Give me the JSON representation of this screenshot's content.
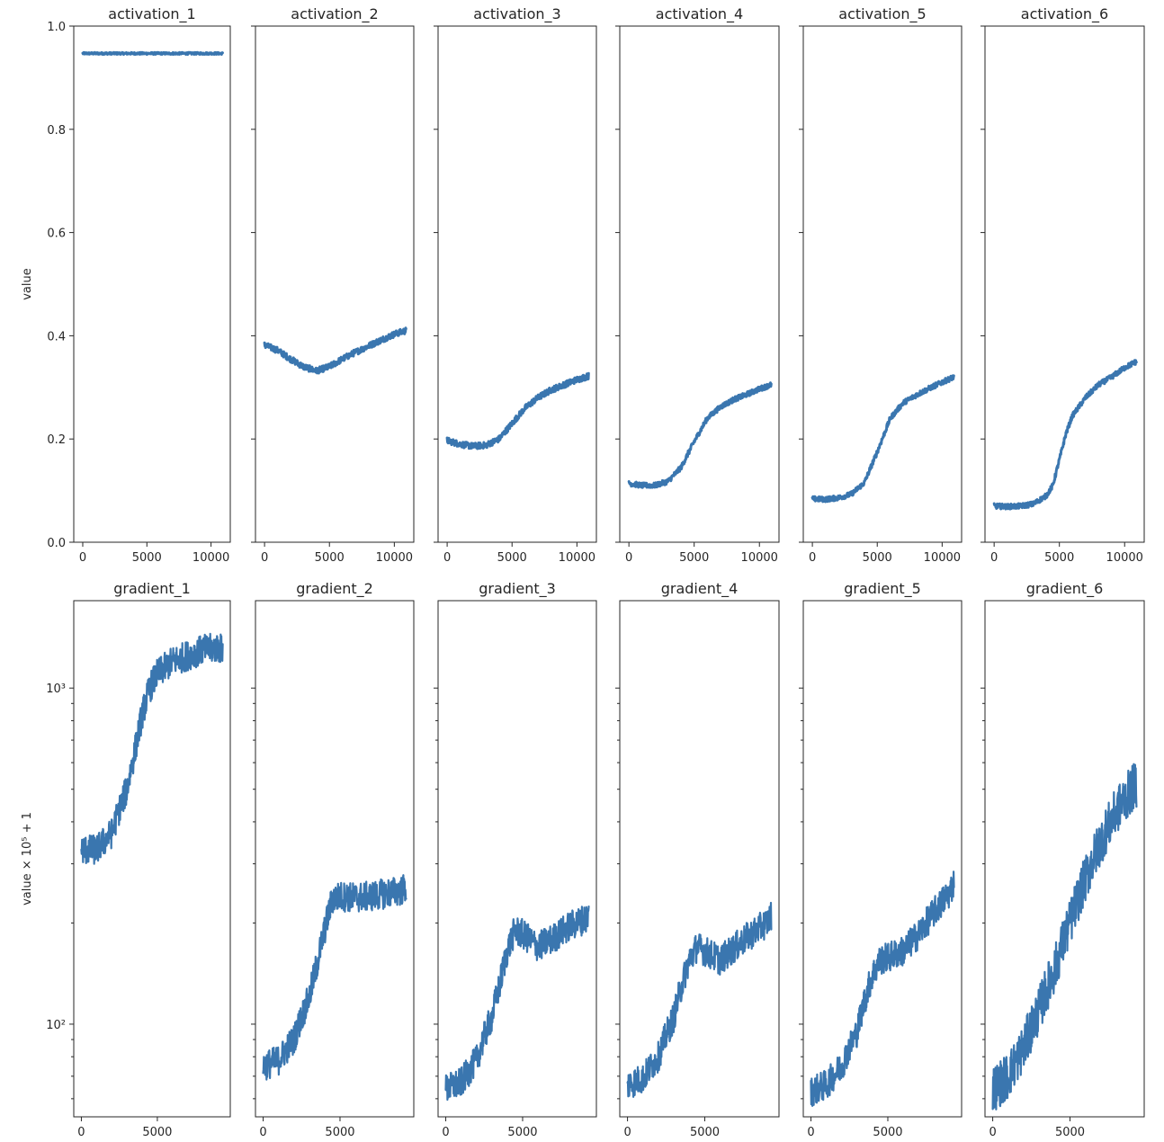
{
  "chart_data": [
    {
      "type": "line",
      "title": "activation_1",
      "ylabel": "value",
      "yscale": "linear",
      "xlim": [
        -700,
        11500
      ],
      "ylim": [
        0,
        1.0
      ],
      "xticks": [
        0,
        5000,
        10000
      ],
      "yticks": [
        0,
        0.2,
        0.4,
        0.6,
        0.8,
        1.0
      ],
      "xtick_labels": [
        "0",
        "5000",
        "10000"
      ],
      "ytick_labels": [
        "0.0",
        "0.2",
        "0.4",
        "0.6",
        "0.8",
        "1.0"
      ],
      "color": "#3a76af",
      "noise": 0.002,
      "x": [
        0,
        2000,
        4000,
        6000,
        8000,
        10000,
        10900
      ],
      "y": [
        0.947,
        0.947,
        0.947,
        0.947,
        0.947,
        0.947,
        0.947
      ]
    },
    {
      "type": "line",
      "title": "activation_2",
      "ylabel": "",
      "yscale": "linear",
      "xlim": [
        -700,
        11500
      ],
      "ylim": [
        0,
        1.0
      ],
      "xticks": [
        0,
        5000,
        10000
      ],
      "yticks": [
        0,
        0.2,
        0.4,
        0.6,
        0.8,
        1.0
      ],
      "xtick_labels": [
        "0",
        "5000",
        "10000"
      ],
      "ytick_labels": [],
      "color": "#3a76af",
      "noise": 0.006,
      "x": [
        0,
        1000,
        2000,
        3000,
        4000,
        5000,
        6000,
        7000,
        8000,
        9000,
        10000,
        10900
      ],
      "y": [
        0.382,
        0.372,
        0.355,
        0.34,
        0.332,
        0.34,
        0.355,
        0.368,
        0.38,
        0.392,
        0.403,
        0.41
      ]
    },
    {
      "type": "line",
      "title": "activation_3",
      "ylabel": "",
      "yscale": "linear",
      "xlim": [
        -700,
        11500
      ],
      "ylim": [
        0,
        1.0
      ],
      "xticks": [
        0,
        5000,
        10000
      ],
      "yticks": [
        0,
        0.2,
        0.4,
        0.6,
        0.8,
        1.0
      ],
      "xtick_labels": [
        "0",
        "5000",
        "10000"
      ],
      "ytick_labels": [],
      "color": "#3a76af",
      "noise": 0.006,
      "x": [
        0,
        1000,
        2000,
        3000,
        4000,
        5000,
        6000,
        7000,
        8000,
        9000,
        10000,
        10900
      ],
      "y": [
        0.197,
        0.19,
        0.186,
        0.188,
        0.2,
        0.23,
        0.26,
        0.28,
        0.295,
        0.305,
        0.315,
        0.322
      ]
    },
    {
      "type": "line",
      "title": "activation_4",
      "ylabel": "",
      "yscale": "linear",
      "xlim": [
        -700,
        11500
      ],
      "ylim": [
        0,
        1.0
      ],
      "xticks": [
        0,
        5000,
        10000
      ],
      "yticks": [
        0,
        0.2,
        0.4,
        0.6,
        0.8,
        1.0
      ],
      "xtick_labels": [
        "0",
        "5000",
        "10000"
      ],
      "ytick_labels": [],
      "color": "#3a76af",
      "noise": 0.005,
      "x": [
        0,
        1000,
        2000,
        3000,
        4000,
        5000,
        6000,
        7000,
        8000,
        9000,
        10000,
        10900
      ],
      "y": [
        0.114,
        0.11,
        0.11,
        0.118,
        0.145,
        0.195,
        0.24,
        0.262,
        0.276,
        0.286,
        0.297,
        0.305
      ]
    },
    {
      "type": "line",
      "title": "activation_5",
      "ylabel": "",
      "yscale": "linear",
      "xlim": [
        -700,
        11500
      ],
      "ylim": [
        0,
        1.0
      ],
      "xticks": [
        0,
        5000,
        10000
      ],
      "yticks": [
        0,
        0.2,
        0.4,
        0.6,
        0.8,
        1.0
      ],
      "xtick_labels": [
        "0",
        "5000",
        "10000"
      ],
      "ytick_labels": [],
      "color": "#3a76af",
      "noise": 0.005,
      "x": [
        0,
        1000,
        2000,
        3000,
        4000,
        5000,
        6000,
        7000,
        8000,
        9000,
        10000,
        10900
      ],
      "y": [
        0.084,
        0.083,
        0.086,
        0.093,
        0.115,
        0.175,
        0.24,
        0.27,
        0.285,
        0.298,
        0.31,
        0.32
      ]
    },
    {
      "type": "line",
      "title": "activation_6",
      "ylabel": "",
      "yscale": "linear",
      "xlim": [
        -700,
        11500
      ],
      "ylim": [
        0,
        1.0
      ],
      "xticks": [
        0,
        5000,
        10000
      ],
      "yticks": [
        0,
        0.2,
        0.4,
        0.6,
        0.8,
        1.0
      ],
      "xtick_labels": [
        "0",
        "5000",
        "10000"
      ],
      "ytick_labels": [],
      "color": "#3a76af",
      "noise": 0.005,
      "x": [
        0,
        1000,
        2000,
        3000,
        4000,
        4500,
        5000,
        5500,
        6000,
        7000,
        8000,
        9000,
        10000,
        10900
      ],
      "y": [
        0.07,
        0.069,
        0.07,
        0.074,
        0.09,
        0.11,
        0.16,
        0.21,
        0.245,
        0.28,
        0.305,
        0.32,
        0.338,
        0.35
      ]
    },
    {
      "type": "line",
      "title": "gradient_1",
      "ylabel": "value × 10⁵ + 1",
      "yscale": "log",
      "xlim": [
        -500,
        9800
      ],
      "ylim": [
        53,
        1820
      ],
      "xticks": [
        0,
        5000
      ],
      "yticks": [
        100,
        1000
      ],
      "xtick_labels": [
        "0",
        "5000"
      ],
      "ytick_labels": [
        "10²",
        "10³"
      ],
      "minor_yticks": [
        60,
        70,
        80,
        90,
        200,
        300,
        400,
        500,
        600,
        700,
        800,
        900
      ],
      "color": "#3a76af",
      "noise": 0.045,
      "x": [
        0,
        1000,
        2000,
        3000,
        3500,
        4000,
        4500,
        5000,
        6000,
        7000,
        8000,
        9000,
        9300
      ],
      "y": [
        330,
        330,
        370,
        500,
        640,
        830,
        1000,
        1100,
        1200,
        1250,
        1300,
        1320,
        1300
      ]
    },
    {
      "type": "line",
      "title": "gradient_2",
      "ylabel": "",
      "yscale": "log",
      "xlim": [
        -500,
        9800
      ],
      "ylim": [
        53,
        1820
      ],
      "xticks": [
        0,
        5000
      ],
      "yticks": [
        100,
        1000
      ],
      "xtick_labels": [
        "0",
        "5000"
      ],
      "ytick_labels": [],
      "minor_yticks": [
        60,
        70,
        80,
        90,
        200,
        300,
        400,
        500,
        600,
        700,
        800,
        900
      ],
      "color": "#3a76af",
      "noise": 0.045,
      "x": [
        0,
        1000,
        2000,
        3000,
        3500,
        4000,
        4500,
        5000,
        6000,
        7000,
        8000,
        9000,
        9300
      ],
      "y": [
        75,
        78,
        90,
        120,
        150,
        190,
        235,
        240,
        238,
        240,
        245,
        250,
        255
      ]
    },
    {
      "type": "line",
      "title": "gradient_3",
      "ylabel": "",
      "yscale": "log",
      "xlim": [
        -500,
        9800
      ],
      "ylim": [
        53,
        1820
      ],
      "xticks": [
        0,
        5000
      ],
      "yticks": [
        100,
        1000
      ],
      "xtick_labels": [
        "0",
        "5000"
      ],
      "ytick_labels": [],
      "minor_yticks": [
        60,
        70,
        80,
        90,
        200,
        300,
        400,
        500,
        600,
        700,
        800,
        900
      ],
      "color": "#3a76af",
      "noise": 0.045,
      "x": [
        0,
        1000,
        2000,
        3000,
        3500,
        4000,
        4500,
        5000,
        6000,
        7000,
        8000,
        9000,
        9300
      ],
      "y": [
        64,
        67,
        78,
        105,
        130,
        165,
        190,
        185,
        170,
        180,
        195,
        205,
        210
      ]
    },
    {
      "type": "line",
      "title": "gradient_4",
      "ylabel": "",
      "yscale": "log",
      "xlim": [
        -500,
        9800
      ],
      "ylim": [
        53,
        1820
      ],
      "xticks": [
        0,
        5000
      ],
      "yticks": [
        100,
        1000
      ],
      "xtick_labels": [
        "0",
        "5000"
      ],
      "ytick_labels": [],
      "minor_yticks": [
        60,
        70,
        80,
        90,
        200,
        300,
        400,
        500,
        600,
        700,
        800,
        900
      ],
      "color": "#3a76af",
      "noise": 0.045,
      "x": [
        0,
        1000,
        2000,
        3000,
        3500,
        4000,
        4500,
        5000,
        6000,
        7000,
        8000,
        9000,
        9300
      ],
      "y": [
        66,
        69,
        80,
        105,
        130,
        155,
        170,
        165,
        155,
        170,
        185,
        200,
        210
      ]
    },
    {
      "type": "line",
      "title": "gradient_5",
      "ylabel": "",
      "yscale": "log",
      "xlim": [
        -500,
        9800
      ],
      "ylim": [
        53,
        1820
      ],
      "xticks": [
        0,
        5000
      ],
      "yticks": [
        100,
        1000
      ],
      "xtick_labels": [
        "0",
        "5000"
      ],
      "ytick_labels": [],
      "minor_yticks": [
        60,
        70,
        80,
        90,
        200,
        300,
        400,
        500,
        600,
        700,
        800,
        900
      ],
      "color": "#3a76af",
      "noise": 0.045,
      "x": [
        0,
        1000,
        2000,
        3000,
        3500,
        4000,
        4500,
        5000,
        6000,
        7000,
        8000,
        9000,
        9300
      ],
      "y": [
        63,
        66,
        75,
        95,
        118,
        140,
        155,
        158,
        165,
        185,
        215,
        245,
        265
      ]
    },
    {
      "type": "line",
      "title": "gradient_6",
      "ylabel": "",
      "yscale": "log",
      "xlim": [
        -500,
        9800
      ],
      "ylim": [
        53,
        1820
      ],
      "xticks": [
        0,
        5000
      ],
      "yticks": [
        100,
        1000
      ],
      "xtick_labels": [
        "0",
        "5000"
      ],
      "ytick_labels": [],
      "minor_yticks": [
        60,
        70,
        80,
        90,
        200,
        300,
        400,
        500,
        600,
        700,
        800,
        900
      ],
      "color": "#3a76af",
      "noise": 0.07,
      "x": [
        0,
        1000,
        2000,
        3000,
        4000,
        5000,
        6000,
        7000,
        8000,
        9000,
        9300
      ],
      "y": [
        64,
        70,
        85,
        110,
        145,
        200,
        270,
        350,
        430,
        500,
        520
      ]
    }
  ]
}
